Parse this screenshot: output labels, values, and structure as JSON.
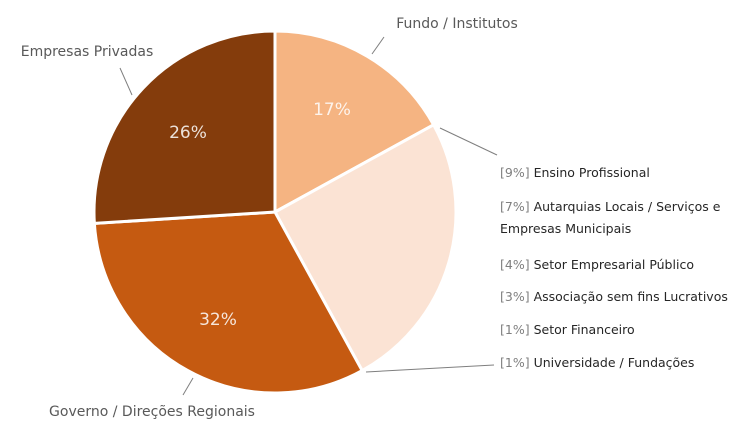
{
  "chart_data": {
    "type": "pie",
    "categories": [
      "Fundo / Institutos",
      null,
      "Governo / Direções Regionais",
      "Empresas Privadas"
    ],
    "values": [
      17,
      25,
      32,
      26
    ],
    "value_labels": [
      "17%",
      null,
      "32%",
      "26%"
    ],
    "colors": [
      "#f5b482",
      "#fbe3d4",
      "#c55a11",
      "#843c0c"
    ],
    "breakdown": {
      "names": [
        "Ensino Profissional",
        "Autarquias Locais / Serviços e Empresas Municipais",
        "Setor Empresarial Público",
        "Associação sem fins Lucrativos",
        "Setor Financeiro",
        "Universidade / Fundações"
      ],
      "values": [
        9,
        7,
        4,
        3,
        1,
        1
      ],
      "value_labels": [
        "[9%]",
        "[7%]",
        "[4%]",
        "[3%]",
        "[1%]",
        "[1%]"
      ]
    }
  }
}
